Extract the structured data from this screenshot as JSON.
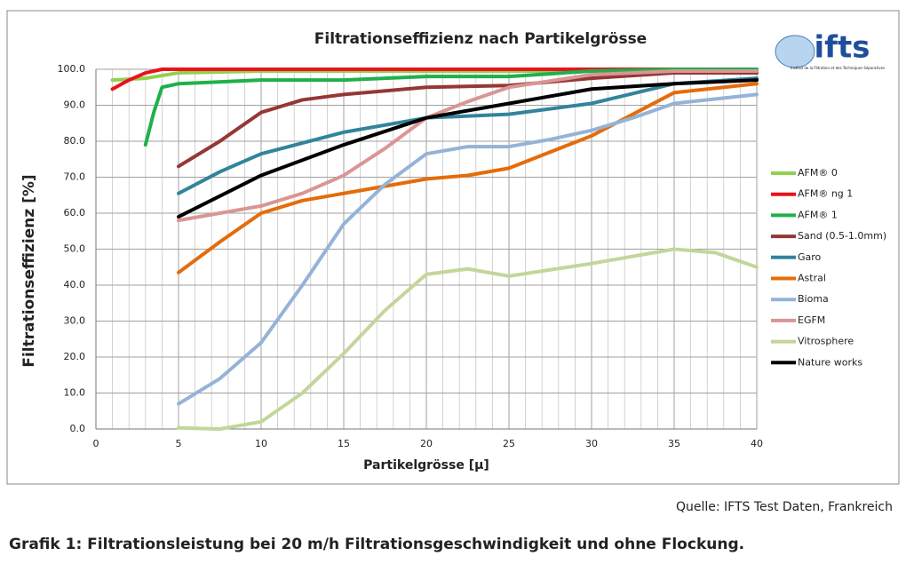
{
  "chart_data": {
    "type": "line",
    "title": "Filtrationseffizienz nach Partikelgrösse",
    "xlabel": "Partikelgrösse [µ]",
    "ylabel": "Filtrationseffizienz [%]",
    "xlim": [
      0,
      40
    ],
    "xticks": [
      0,
      5,
      10,
      15,
      20,
      25,
      30,
      35,
      40
    ],
    "ylim": [
      0,
      100
    ],
    "yticks": [
      {
        "value": 0,
        "label": "0.0"
      },
      {
        "value": 10,
        "label": "10.0"
      },
      {
        "value": 20,
        "label": "20.0"
      },
      {
        "value": 30,
        "label": "30.0"
      },
      {
        "value": 40,
        "label": "40.0"
      },
      {
        "value": 50,
        "label": "50.0"
      },
      {
        "value": 60,
        "label": "60.0"
      },
      {
        "value": 70,
        "label": "70.0"
      },
      {
        "value": 80,
        "label": "80.0"
      },
      {
        "value": 90,
        "label": "90.0"
      },
      {
        "value": 100,
        "label": "100.0"
      }
    ],
    "grid": true,
    "legend": "right",
    "series": [
      {
        "name": "AFM® 0",
        "color": "#92d050",
        "x": [
          1,
          3,
          5,
          10,
          20,
          30,
          40
        ],
        "values": [
          97,
          97.5,
          99,
          99.5,
          99.5,
          99.5,
          99.5
        ]
      },
      {
        "name": "AFM® ng 1",
        "color": "#e8141b",
        "x": [
          1,
          2,
          3,
          4,
          5,
          40
        ],
        "values": [
          94.5,
          97,
          99,
          100,
          100,
          100
        ]
      },
      {
        "name": "AFM® 1",
        "color": "#1fb04b",
        "x": [
          3,
          3.5,
          4,
          5,
          10,
          15,
          20,
          25,
          30,
          35,
          40
        ],
        "values": [
          79,
          88,
          95,
          96,
          97,
          97,
          98,
          98,
          99.5,
          100,
          100
        ]
      },
      {
        "name": "Sand (0.5-1.0mm)",
        "color": "#953735",
        "x": [
          5,
          7.5,
          10,
          12.5,
          15,
          20,
          25,
          30,
          35,
          40
        ],
        "values": [
          73,
          80,
          88,
          91.5,
          93,
          95,
          95.5,
          97.5,
          99,
          99
        ]
      },
      {
        "name": "Garo",
        "color": "#31849b",
        "x": [
          5,
          7.5,
          10,
          15,
          20,
          25,
          30,
          35,
          40
        ],
        "values": [
          65.5,
          71.5,
          76.5,
          82.5,
          86.5,
          87.5,
          90.5,
          96,
          97.5
        ]
      },
      {
        "name": "Astral",
        "color": "#e46c0a",
        "x": [
          5,
          7.5,
          10,
          12.5,
          15,
          20,
          22.5,
          25,
          30,
          35,
          40
        ],
        "values": [
          43.5,
          52,
          60,
          63.5,
          65.5,
          69.5,
          70.5,
          72.5,
          81.5,
          93.5,
          96
        ]
      },
      {
        "name": "Bioma",
        "color": "#95b3d7",
        "x": [
          5,
          7.5,
          10,
          12.5,
          15,
          17.5,
          20,
          22.5,
          25,
          27.5,
          30,
          32.5,
          35,
          40
        ],
        "values": [
          7,
          14,
          24,
          40,
          57,
          68,
          76.5,
          78.5,
          78.5,
          80.5,
          83,
          86.5,
          90.5,
          93
        ]
      },
      {
        "name": "EGFM",
        "color": "#d99694",
        "x": [
          5,
          10,
          12.5,
          15,
          17.5,
          20,
          22.5,
          25,
          30,
          35,
          40
        ],
        "values": [
          58,
          62,
          65.5,
          70.5,
          78,
          86.5,
          91,
          95,
          98.5,
          99.5,
          99.5
        ]
      },
      {
        "name": "Vitrosphere",
        "color": "#c3d69b",
        "x": [
          5,
          7.5,
          10,
          12.5,
          15,
          17.5,
          20,
          22.5,
          25,
          30,
          35,
          37.5,
          40
        ],
        "values": [
          0.3,
          0,
          2,
          10,
          21,
          33,
          43,
          44.5,
          42.5,
          46,
          50,
          49,
          45
        ]
      },
      {
        "name": "Nature works",
        "color": "#000000",
        "x": [
          5,
          10,
          15,
          20,
          25,
          30,
          35,
          40
        ],
        "values": [
          59,
          70.5,
          79,
          86.5,
          90.5,
          94.5,
          96,
          97
        ]
      }
    ]
  },
  "logo": {
    "text": "ifts",
    "subtitle": "Institut de la Filtration et des Techniques Séparatives"
  },
  "source": "Quelle: IFTS Test Daten, Frankreich",
  "caption": "Grafik 1: Filtrationsleistung bei 20 m/h Filtrationsgeschwindigkeit und ohne Flockung."
}
